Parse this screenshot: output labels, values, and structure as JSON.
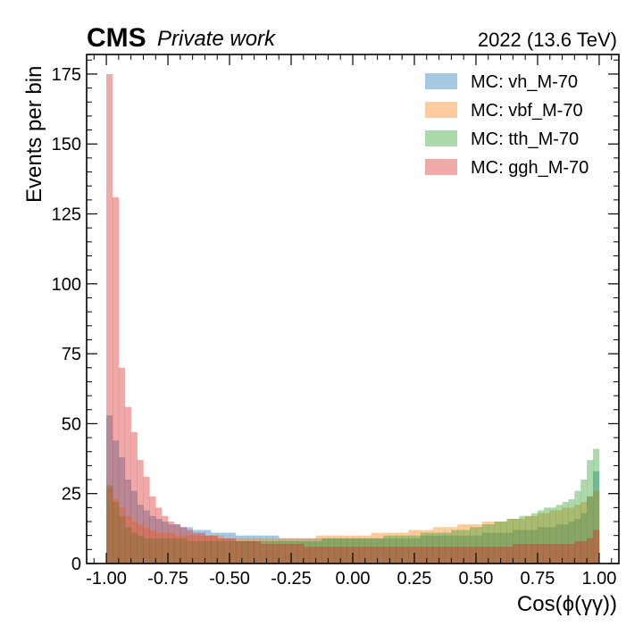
{
  "header": {
    "experiment": "CMS",
    "status": "Private work",
    "energy_label": "2022 (13.6 TeV)"
  },
  "colors": {
    "vh": "#1f77b4",
    "vbf": "#ff7f0e",
    "tth": "#2ca02c",
    "ggh": "#d62728"
  },
  "chart_data": {
    "type": "histogram",
    "histtype": "stepfilled",
    "alpha": 0.4,
    "xlabel": "Cos(ϕ(γγ))",
    "ylabel": "Events per bin",
    "xlim": [
      -1.08,
      1.08
    ],
    "ylim": [
      0,
      182
    ],
    "x_ticks": [
      "-1.00",
      "-0.75",
      "-0.50",
      "-0.25",
      "0.00",
      "0.25",
      "0.50",
      "0.75",
      "1.00"
    ],
    "x_tick_values": [
      -1.0,
      -0.75,
      -0.5,
      -0.25,
      0.0,
      0.25,
      0.5,
      0.75,
      1.0
    ],
    "y_ticks": [
      "0",
      "25",
      "50",
      "75",
      "100",
      "125",
      "150",
      "175"
    ],
    "y_tick_values": [
      0,
      25,
      50,
      75,
      100,
      125,
      150,
      175
    ],
    "legend_position": "top-right",
    "bin_range": [
      -1.0,
      1.0
    ],
    "n_bins": 80,
    "series": [
      {
        "name": "MC: vh_M-70",
        "key": "vh",
        "values": [
          53,
          44,
          38,
          30,
          26,
          21,
          19,
          17,
          16,
          15,
          14,
          14,
          13,
          13,
          12,
          12,
          12,
          11,
          11,
          11,
          11,
          10,
          10,
          10,
          10,
          10,
          10,
          10,
          9,
          9,
          9,
          9,
          9,
          9,
          9,
          9,
          9,
          9,
          9,
          9,
          9,
          9,
          9,
          9,
          9,
          9,
          9,
          9,
          9,
          9,
          9,
          10,
          10,
          10,
          10,
          10,
          10,
          10,
          10,
          10,
          10,
          11,
          11,
          11,
          11,
          11,
          12,
          12,
          12,
          12,
          13,
          13,
          13,
          14,
          14,
          15,
          16,
          18,
          24,
          33
        ]
      },
      {
        "name": "MC: vbf_M-70",
        "key": "vbf",
        "values": [
          27,
          23,
          20,
          17,
          15,
          14,
          13,
          12,
          11,
          11,
          11,
          10,
          10,
          10,
          10,
          10,
          10,
          10,
          10,
          9,
          9,
          9,
          9,
          9,
          9,
          9,
          9,
          9,
          9,
          9,
          9,
          9,
          9,
          9,
          10,
          10,
          10,
          10,
          10,
          10,
          10,
          10,
          10,
          11,
          11,
          11,
          11,
          11,
          11,
          12,
          12,
          12,
          12,
          13,
          13,
          13,
          13,
          14,
          14,
          14,
          14,
          15,
          15,
          15,
          15,
          16,
          16,
          16,
          17,
          17,
          18,
          18,
          19,
          19,
          20,
          20,
          21,
          22,
          24,
          26
        ]
      },
      {
        "name": "MC: tth_M-70",
        "key": "tth",
        "values": [
          28,
          22,
          17,
          13,
          11,
          10,
          9,
          9,
          9,
          9,
          9,
          9,
          9,
          8,
          8,
          8,
          8,
          8,
          8,
          8,
          8,
          8,
          8,
          8,
          8,
          8,
          8,
          8,
          8,
          8,
          8,
          8,
          8,
          8,
          8,
          9,
          9,
          9,
          9,
          9,
          9,
          9,
          9,
          9,
          9,
          10,
          10,
          10,
          10,
          10,
          10,
          11,
          11,
          11,
          11,
          11,
          12,
          12,
          12,
          13,
          13,
          14,
          14,
          15,
          15,
          16,
          16,
          17,
          17,
          18,
          19,
          20,
          20,
          21,
          22,
          23,
          26,
          30,
          37,
          41
        ]
      },
      {
        "name": "MC: ggh_M-70",
        "key": "ggh",
        "values": [
          175,
          131,
          70,
          56,
          47,
          37,
          31,
          24,
          20,
          17,
          15,
          14,
          13,
          12,
          11,
          11,
          10,
          10,
          9,
          9,
          9,
          8,
          8,
          8,
          8,
          7,
          7,
          7,
          7,
          7,
          7,
          7,
          6,
          6,
          6,
          6,
          6,
          6,
          6,
          6,
          6,
          6,
          6,
          6,
          6,
          6,
          6,
          6,
          6,
          6,
          6,
          6,
          6,
          6,
          6,
          6,
          6,
          6,
          6,
          6,
          6,
          6,
          6,
          6,
          6,
          6,
          7,
          7,
          7,
          7,
          7,
          7,
          7,
          7,
          7,
          7,
          8,
          8,
          9,
          12
        ]
      }
    ]
  }
}
